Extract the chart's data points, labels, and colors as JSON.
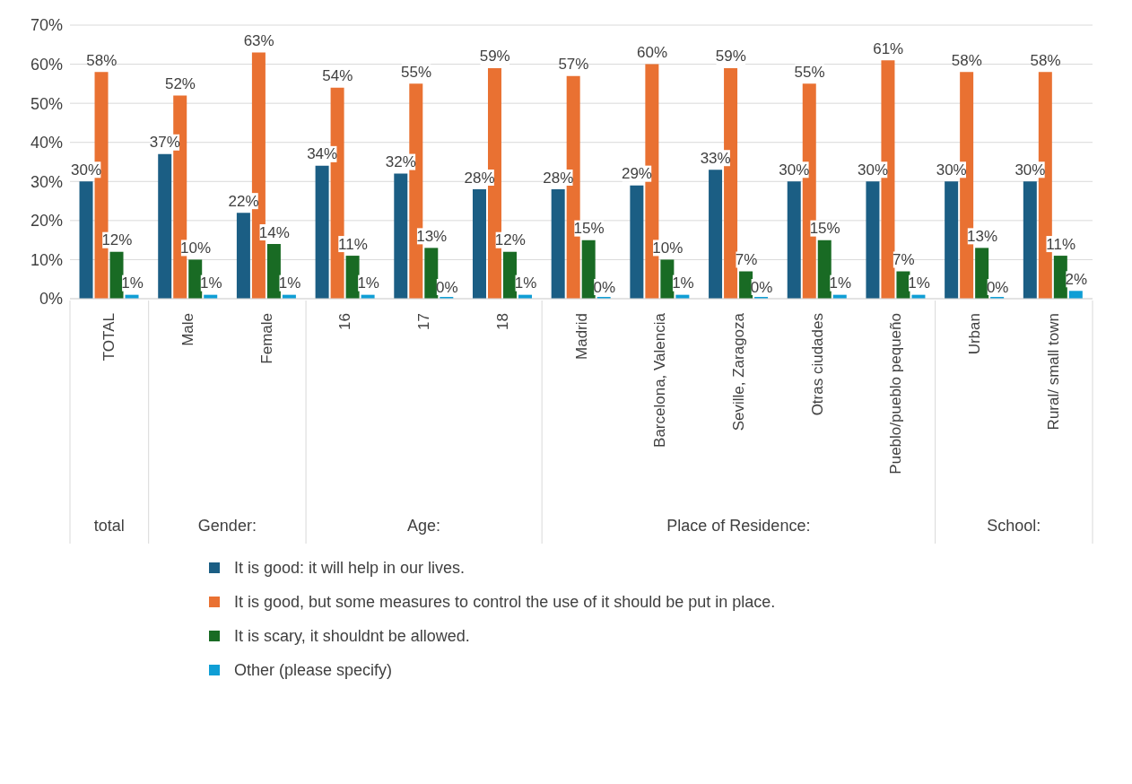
{
  "chart_data": {
    "type": "bar",
    "categories": [
      "TOTAL",
      "Male",
      "Female",
      "16",
      "17",
      "18",
      "Madrid",
      "Barcelona, Valencia",
      "Seville, Zaragoza",
      "Otras ciudades",
      "Pueblo/pueblo pequeño",
      "Urban",
      "Rural/ small town"
    ],
    "series": [
      {
        "name": "It is good: it will help in our lives.",
        "color": "#1b5e84",
        "values": [
          30,
          37,
          22,
          34,
          32,
          28,
          28,
          29,
          33,
          30,
          30,
          30,
          30
        ],
        "value_labels": [
          "30%",
          "37%",
          "22%",
          "34%",
          "32%",
          "28%",
          "28%",
          "29%",
          "33%",
          "30%",
          "30%",
          "30%",
          "30%"
        ]
      },
      {
        "name": "It is good, but some measures to control the use of it should be put in place.",
        "color": "#e97132",
        "values": [
          58,
          52,
          63,
          54,
          55,
          59,
          57,
          60,
          59,
          55,
          61,
          58,
          58
        ],
        "value_labels": [
          "58%",
          "52%",
          "63%",
          "54%",
          "55%",
          "59%",
          "57%",
          "60%",
          "59%",
          "55%",
          "61%",
          "58%",
          "58%"
        ]
      },
      {
        "name": "It is scary, it shouldnt be allowed.",
        "color": "#196b24",
        "values": [
          12,
          10,
          14,
          11,
          13,
          12,
          15,
          10,
          7,
          15,
          7,
          13,
          11
        ],
        "value_labels": [
          "12%",
          "10%",
          "14%",
          "11%",
          "13%",
          "12%",
          "15%",
          "10%",
          "7%",
          "15%",
          "7%",
          "13%",
          "11%"
        ]
      },
      {
        "name": "Other (please specify)",
        "color": "#0f9ed5",
        "values": [
          1,
          1,
          1,
          1,
          0,
          1,
          0,
          1,
          0,
          1,
          1,
          0,
          2
        ],
        "value_labels": [
          "1%",
          "1%",
          "1%",
          "1%",
          "0%",
          "1%",
          "0%",
          "1%",
          "0%",
          "1%",
          "1%",
          "0%",
          "2%"
        ]
      }
    ],
    "ylim": [
      0,
      70
    ],
    "yticks": [
      {
        "value": 0,
        "label": "0%"
      },
      {
        "value": 10,
        "label": "10%"
      },
      {
        "value": 20,
        "label": "20%"
      },
      {
        "value": 30,
        "label": "30%"
      },
      {
        "value": 40,
        "label": "40%"
      },
      {
        "value": 50,
        "label": "50%"
      },
      {
        "value": 60,
        "label": "60%"
      },
      {
        "value": 70,
        "label": "70%"
      }
    ],
    "grid": "y",
    "legend": "bottom",
    "annotations": [
      "total",
      "Gender:",
      "Age:",
      "Place of Residence:",
      "School:"
    ]
  }
}
